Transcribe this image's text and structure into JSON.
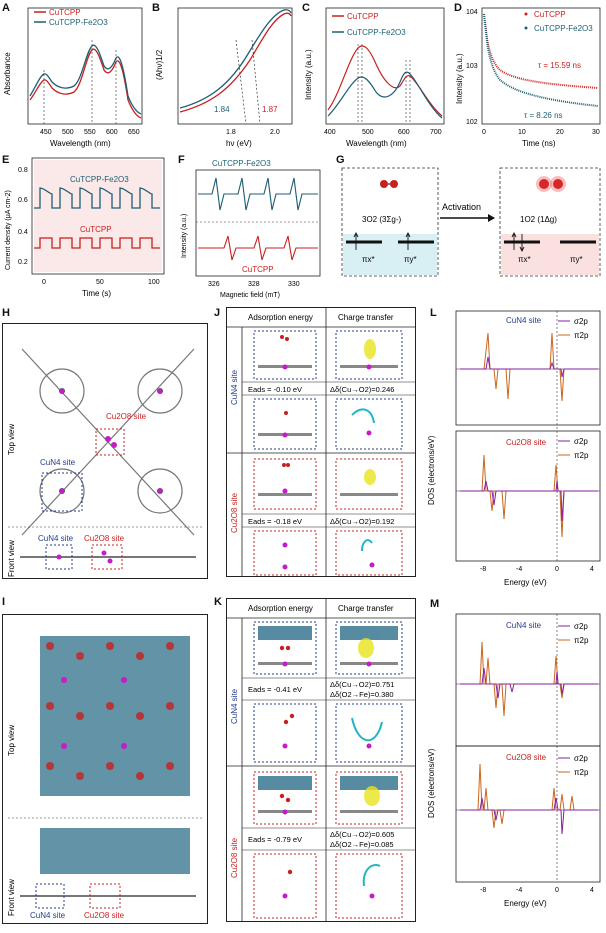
{
  "colors": {
    "red": "#c8201e",
    "teal": "#1d5f73",
    "blue": "#233b8f",
    "orange": "#c9661e",
    "purple": "#8a1fa0",
    "magenta": "#c21dc9"
  },
  "labels": {
    "A": "A",
    "B": "B",
    "C": "C",
    "D": "D",
    "E": "E",
    "F": "F",
    "G": "G",
    "H": "H",
    "I": "I",
    "J": "J",
    "K": "K",
    "L": "L",
    "M": "M"
  },
  "legend": {
    "s1": "CuTCPP",
    "s2": "CuTCPP-Fe2O3"
  },
  "A": {
    "ylabel": "Absorbance",
    "xlabel": "Wavelength (nm)",
    "ticks": [
      "450",
      "500",
      "550",
      "600",
      "650"
    ]
  },
  "B": {
    "ylabel": "(Ahν)1/2",
    "xlabel": "hν (eV)",
    "ticks": [
      "1.8",
      "2.0"
    ],
    "val1": "1.84",
    "val2": "1.87"
  },
  "C": {
    "ylabel": "Intensity (a.u.)",
    "xlabel": "Wavelength (nm)",
    "ticks": [
      "400",
      "500",
      "600",
      "700"
    ]
  },
  "D": {
    "ylabel": "Intensity (a.u.)",
    "xlabel": "Time (ns)",
    "yticks": [
      "104",
      "103",
      "102"
    ],
    "ticks": [
      "0",
      "10",
      "20",
      "30"
    ],
    "tau1": "τ = 15.59 ns",
    "tau2": "τ = 8.26 ns"
  },
  "E": {
    "ylabel": "Current density (μA cm-2)",
    "xlabel": "Time (s)",
    "yticks": [
      "0.8",
      "0.6",
      "0.4",
      "0.2"
    ],
    "ticks": [
      "0",
      "50",
      "100"
    ],
    "s1": "CuTCPP-Fe2O3",
    "s2": "CuTCPP"
  },
  "F": {
    "ylabel": "Intensity (a.u.)",
    "xlabel": "Magnetic field (mT)",
    "ticks": [
      "326",
      "328",
      "330"
    ],
    "s1": "CuTCPP-Fe2O3",
    "s2": "CuTCPP"
  },
  "G": {
    "left": "3O2 (3Σg-)",
    "right": "1O2 (1Δg)",
    "arrow": "Activation",
    "pix": "πx*",
    "piy": "πy*"
  },
  "H": {
    "top": "Top view",
    "front": "Front view",
    "cuo": "Cu2O8 site",
    "cun": "CuN4 site",
    "cun2": "CuN4 site",
    "cuo2": "Cu2O8 site"
  },
  "I": {
    "top": "Top view",
    "front": "Front view",
    "cun": "CuN4 site",
    "cuo": "Cu2O8 site"
  },
  "J": {
    "h1": "Adsorption energy",
    "h2": "Charge transfer",
    "side1": "CuN4 site",
    "side2": "Cu2O8 site",
    "e1": "Eads = -0.10 eV",
    "c1": "Δδ(Cu→O2)=0.246",
    "e2": "Eads = -0.18 eV",
    "c2": "Δδ(Cu→O2)=0.192"
  },
  "K": {
    "h1": "Adsorption energy",
    "h2": "Charge transfer",
    "side1": "CuN4 site",
    "side2": "Cu2O8 site",
    "e1": "Eads = -0.41 eV",
    "c1a": "Δδ(Cu→O2)=0.751",
    "c1b": "Δδ(O2→Fe)=0.380",
    "e2": "Eads = -0.79 eV",
    "c2a": "Δδ(Cu→O2)=0.605",
    "c2b": "Δδ(O2→Fe)=0.085"
  },
  "L": {
    "ylabel": "DOS (electrons/eV)",
    "xlabel": "Energy (eV)",
    "site1": "CuN4 site",
    "site2": "Cu2O8 site",
    "l1": "σ2p",
    "l2": "π2p",
    "xticks": [
      "-8",
      "-4",
      "0",
      "4"
    ]
  },
  "M": {
    "ylabel": "DOS (electrons/eV)",
    "xlabel": "Energy (eV)",
    "site1": "CuN4 site",
    "site2": "Cu2O8 site",
    "l1": "σ2p",
    "l2": "π2p",
    "xticks": [
      "-8",
      "-4",
      "0",
      "4"
    ]
  }
}
